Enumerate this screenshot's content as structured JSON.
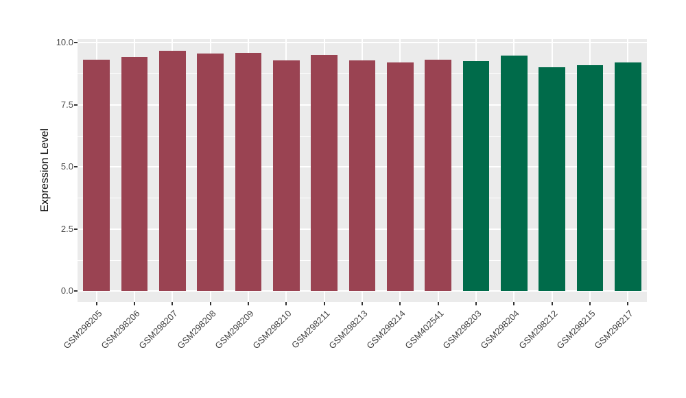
{
  "figure": {
    "title": ""
  },
  "chart_data": {
    "type": "bar",
    "title": "",
    "xlabel": "",
    "ylabel": "Expression Level",
    "ylim": [
      0,
      10
    ],
    "yticks": [
      0,
      2.5,
      5,
      7.5,
      10
    ],
    "ytick_labels": [
      "0.0",
      "2.5",
      "5.0",
      "7.5",
      "10.0"
    ],
    "yminor_ticks": [
      1.25,
      3.75,
      6.25,
      8.75
    ],
    "grid": "on",
    "legend_position": "none",
    "panel_bg": "#EBEBEB",
    "grid_color": "#FFFFFF",
    "tick_color": "#333333",
    "categories": [
      "GSM298205",
      "GSM298206",
      "GSM298207",
      "GSM298208",
      "GSM298209",
      "GSM298210",
      "GSM298211",
      "GSM298213",
      "GSM298214",
      "GSM402541",
      "GSM298203",
      "GSM298204",
      "GSM298212",
      "GSM298215",
      "GSM298217"
    ],
    "values": [
      9.3,
      9.42,
      9.68,
      9.55,
      9.58,
      9.28,
      9.5,
      9.28,
      9.19,
      9.31,
      9.26,
      9.48,
      9.01,
      9.1,
      9.19
    ],
    "bar_colors": [
      "#9A4352",
      "#9A4352",
      "#9A4352",
      "#9A4352",
      "#9A4352",
      "#9A4352",
      "#9A4352",
      "#9A4352",
      "#9A4352",
      "#9A4352",
      "#006B4A",
      "#006B4A",
      "#006B4A",
      "#006B4A",
      "#006B4A"
    ],
    "group_color_red": "#9A4352",
    "group_color_green": "#006B4A"
  }
}
